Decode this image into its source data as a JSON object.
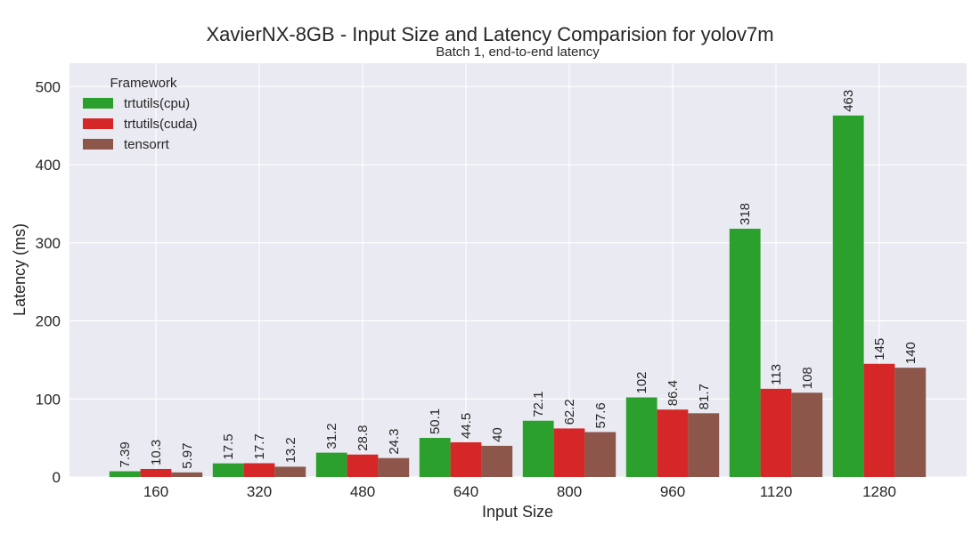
{
  "chart_data": {
    "type": "bar",
    "title": "XavierNX-8GB - Input Size and Latency Comparision for yolov7m",
    "subtitle": "Batch 1, end-to-end latency",
    "xlabel": "Input Size",
    "ylabel": "Latency (ms)",
    "ylim": [
      0,
      530
    ],
    "yticks": [
      0,
      100,
      200,
      300,
      400,
      500
    ],
    "grid": true,
    "legend": {
      "title": "Framework",
      "placement": "top-left"
    },
    "categories": [
      "160",
      "320",
      "480",
      "640",
      "800",
      "960",
      "1120",
      "1280"
    ],
    "series": [
      {
        "name": "trtutils(cpu)",
        "color": "#2ca02c",
        "values": [
          7.39,
          17.5,
          31.2,
          50.1,
          72.1,
          102,
          318,
          463
        ],
        "labels": [
          "7.39",
          "17.5",
          "31.2",
          "50.1",
          "72.1",
          "102",
          "318",
          "463"
        ]
      },
      {
        "name": "trtutils(cuda)",
        "color": "#d62728",
        "values": [
          10.3,
          17.7,
          28.8,
          44.5,
          62.2,
          86.4,
          113,
          145
        ],
        "labels": [
          "10.3",
          "17.7",
          "28.8",
          "44.5",
          "62.2",
          "86.4",
          "113",
          "145"
        ]
      },
      {
        "name": "tensorrt",
        "color": "#8c564b",
        "values": [
          5.97,
          13.2,
          24.3,
          40,
          57.6,
          81.7,
          108,
          140
        ],
        "labels": [
          "5.97",
          "13.2",
          "24.3",
          "40",
          "57.6",
          "81.7",
          "108",
          "140"
        ]
      }
    ],
    "colors": {
      "plot_background": "#eaeaf2",
      "grid": "#ffffff"
    }
  }
}
